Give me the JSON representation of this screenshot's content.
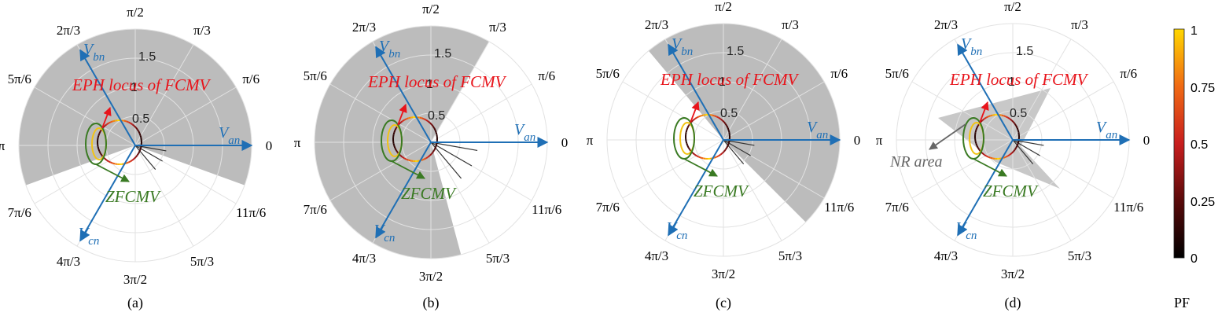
{
  "colors": {
    "vector": "#1f6fb5",
    "eph_annotation": "#e8141b",
    "zfcmv": "#3a7a23",
    "region_fill": "#b8b8b8",
    "grid": "#e2e2e2",
    "nr_arrow": "#666666"
  },
  "angle_labels": [
    "0",
    "π/6",
    "π/3",
    "π/2",
    "2π/3",
    "5π/6",
    "π",
    "7π/6",
    "4π/3",
    "3π/2",
    "5π/3",
    "11π/6"
  ],
  "radial_labels": [
    "0.5",
    "1",
    "1.5"
  ],
  "vectors": {
    "an": {
      "main": "V",
      "sub": "an"
    },
    "bn": {
      "main": "V",
      "sub": "bn"
    },
    "cn": {
      "main": "V",
      "sub": "cn"
    }
  },
  "annotations": {
    "eph": "EPH locus of FCMV",
    "zfcmv": "ZFCMV",
    "nr": "NR area"
  },
  "panels": [
    {
      "label": "(a)",
      "shade_deg": [
        -20,
        200
      ]
    },
    {
      "label": "(b)",
      "shade_deg": [
        60,
        285
      ]
    },
    {
      "label": "(c)",
      "shade_deg": [
        -45,
        130
      ]
    },
    {
      "label": "(d)",
      "shade_deg": null
    }
  ],
  "colorbar": {
    "title": "PF",
    "ticks": [
      "0",
      "0.25",
      "0.5",
      "0.75",
      "1"
    ],
    "range": [
      0,
      1
    ],
    "colormap": [
      "#000000",
      "#5a0a0a",
      "#c81e1e",
      "#f06a14",
      "#ffd700"
    ]
  }
}
